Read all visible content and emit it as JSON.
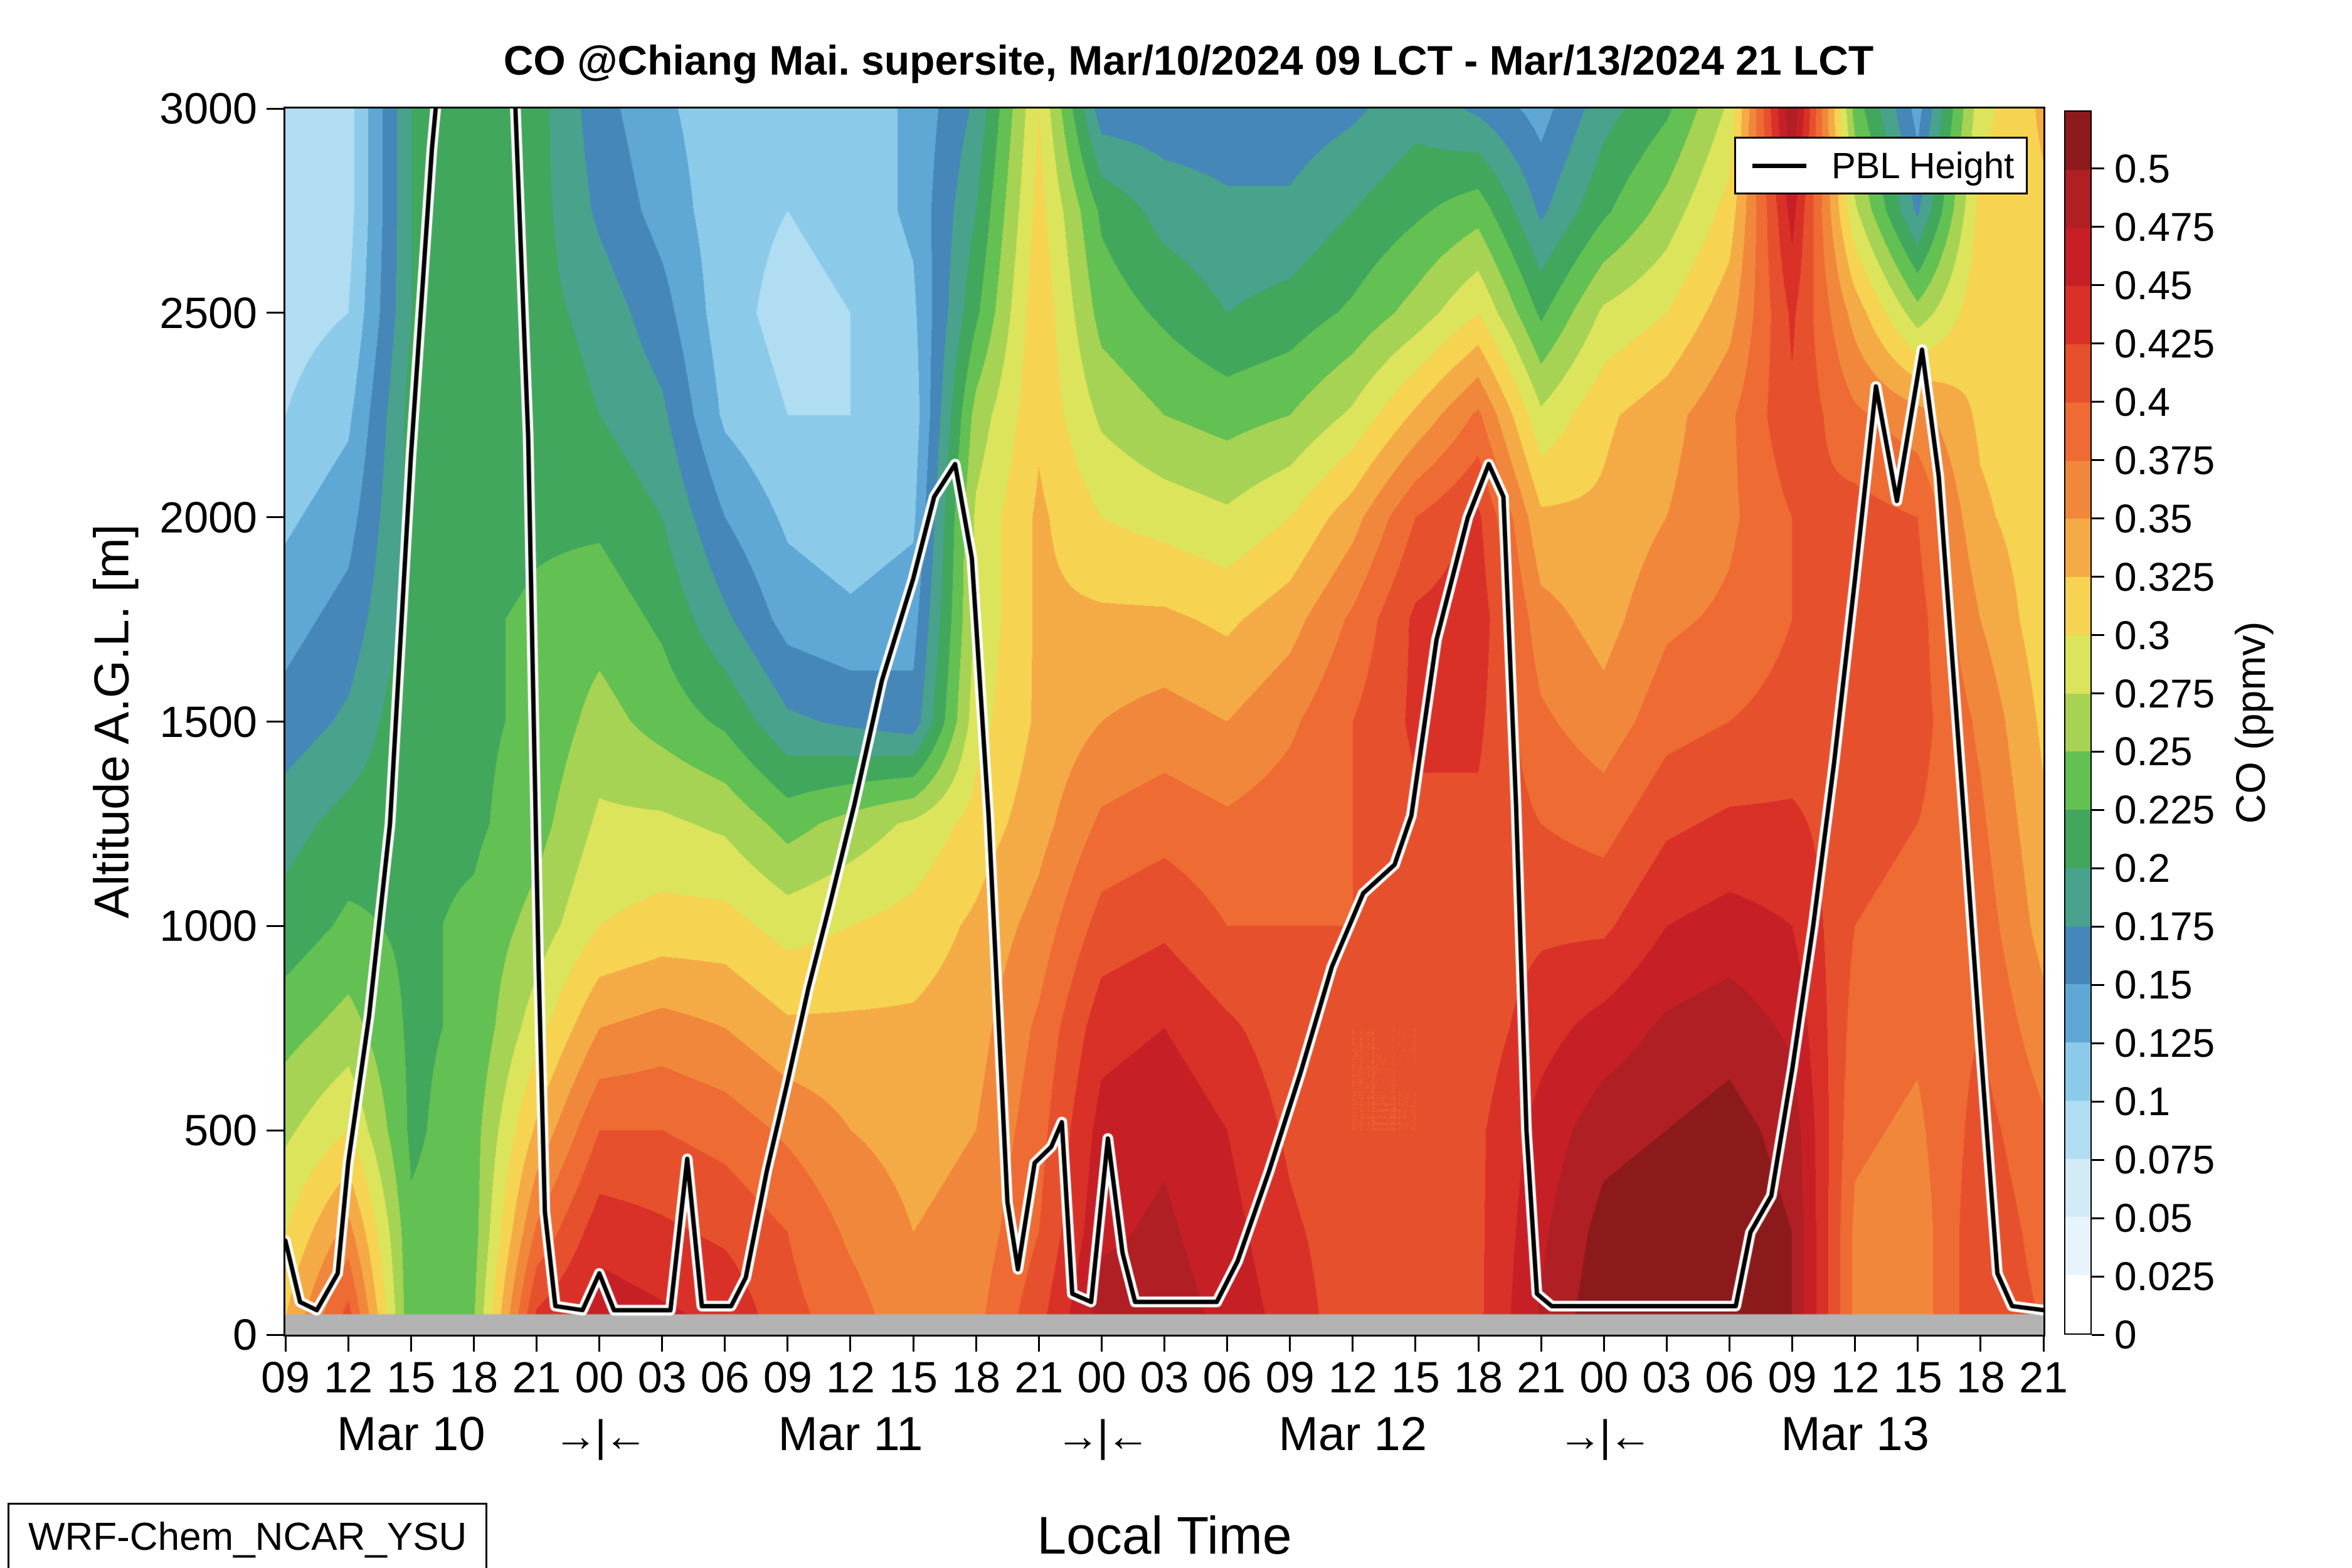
{
  "figure": {
    "title": "CO @Chiang Mai. supersite, Mar/10/2024 09 LCT - Mar/13/2024 21 LCT",
    "xlabel": "Local Time",
    "ylabel": "Altitude A.G.L. [m]",
    "model_label": "WRF-Chem_NCAR_YSU",
    "legend": {
      "label": "PBL Height",
      "line_color": "#000000"
    },
    "colorbar": {
      "label": "CO (ppmv)",
      "tick_labels": [
        "0.5",
        "0.475",
        "0.45",
        "0.425",
        "0.4",
        "0.375",
        "0.35",
        "0.325",
        "0.3",
        "0.275",
        "0.25",
        "0.225",
        "0.2",
        "0.175",
        "0.15",
        "0.125",
        "0.1",
        "0.075",
        "0.05",
        "0.025",
        "0"
      ]
    }
  },
  "chart_data": {
    "type": "heatmap",
    "title": "CO @Chiang Mai. supersite, Mar/10/2024 09 LCT - Mar/13/2024 21 LCT",
    "xlabel": "Local Time",
    "ylabel": "Altitude A.G.L. [m]",
    "x_range_hours": [
      0,
      84
    ],
    "x_tick_step_hours": 3,
    "x_tick_labels": [
      "09",
      "12",
      "15",
      "18",
      "21",
      "00",
      "03",
      "06",
      "09",
      "12",
      "15",
      "18",
      "21",
      "00",
      "03",
      "06",
      "09",
      "12",
      "15",
      "18",
      "21",
      "00",
      "03",
      "06",
      "09",
      "12",
      "15",
      "18",
      "21"
    ],
    "day_labels": [
      {
        "label": "Mar 10",
        "hour": 6
      },
      {
        "label": "Mar 11",
        "hour": 27
      },
      {
        "label": "Mar 12",
        "hour": 51
      },
      {
        "label": "Mar 13",
        "hour": 75
      }
    ],
    "day_separator_label": "→|←",
    "day_separator_hours": [
      15,
      39,
      63
    ],
    "y_ticks_m": [
      0,
      500,
      1000,
      1500,
      2000,
      2500,
      3000
    ],
    "y_range_m": [
      0,
      3000
    ],
    "levels": {
      "min": 0,
      "max": 0.5,
      "step": 0.025,
      "band_colors": [
        "#ffffff",
        "#e8f4fb",
        "#d3eaf7",
        "#b0ddf1",
        "#8bcbe9",
        "#5fa8d5",
        "#4587b9",
        "#48a28c",
        "#41a75c",
        "#63c053",
        "#a6d353",
        "#dce45c",
        "#f6d351",
        "#f5ab45",
        "#f1873b",
        "#ee6b33",
        "#e7502d",
        "#d93128",
        "#c62026",
        "#b01f23",
        "#8d1a1b"
      ]
    },
    "ground": {
      "top_m": 50,
      "color": "#b3b3b3"
    },
    "times_h": [
      0,
      3,
      6,
      9,
      12,
      15,
      18,
      21,
      24,
      27,
      30,
      33,
      36,
      39,
      42,
      45,
      48,
      51,
      54,
      57,
      60,
      63,
      66,
      69,
      72,
      75,
      78,
      81,
      84
    ],
    "altitudes_m": [
      0,
      250,
      500,
      750,
      1000,
      1250,
      1500,
      1750,
      2000,
      2250,
      2500,
      2750,
      3000
    ],
    "co_ppmv": [
      [
        0.33,
        0.42,
        0.23,
        0.25,
        0.44,
        0.47,
        0.46,
        0.45,
        0.41,
        0.39,
        0.36,
        0.37,
        0.42,
        0.49,
        0.49,
        0.47,
        0.44,
        0.41,
        0.4,
        0.42,
        0.48,
        0.52,
        0.52,
        0.52,
        0.5,
        0.37,
        0.36,
        0.42,
        0.4
      ],
      [
        0.3,
        0.36,
        0.23,
        0.24,
        0.38,
        0.44,
        0.43,
        0.42,
        0.4,
        0.37,
        0.35,
        0.36,
        0.4,
        0.47,
        0.48,
        0.46,
        0.43,
        0.41,
        0.4,
        0.42,
        0.47,
        0.51,
        0.52,
        0.52,
        0.5,
        0.37,
        0.36,
        0.42,
        0.39
      ],
      [
        0.27,
        0.3,
        0.22,
        0.24,
        0.33,
        0.4,
        0.4,
        0.39,
        0.37,
        0.35,
        0.34,
        0.35,
        0.39,
        0.46,
        0.47,
        0.45,
        0.42,
        0.4,
        0.4,
        0.42,
        0.46,
        0.49,
        0.5,
        0.51,
        0.49,
        0.38,
        0.37,
        0.41,
        0.38
      ],
      [
        0.24,
        0.26,
        0.22,
        0.23,
        0.29,
        0.35,
        0.36,
        0.35,
        0.33,
        0.33,
        0.33,
        0.34,
        0.38,
        0.44,
        0.45,
        0.43,
        0.41,
        0.4,
        0.4,
        0.41,
        0.44,
        0.46,
        0.48,
        0.49,
        0.47,
        0.39,
        0.38,
        0.4,
        0.36
      ],
      [
        0.21,
        0.23,
        0.22,
        0.23,
        0.26,
        0.3,
        0.31,
        0.31,
        0.29,
        0.3,
        0.31,
        0.33,
        0.36,
        0.41,
        0.42,
        0.4,
        0.4,
        0.4,
        0.41,
        0.41,
        0.42,
        0.42,
        0.45,
        0.46,
        0.45,
        0.4,
        0.39,
        0.39,
        0.34
      ],
      [
        0.19,
        0.21,
        0.22,
        0.22,
        0.24,
        0.28,
        0.28,
        0.27,
        0.24,
        0.26,
        0.28,
        0.31,
        0.34,
        0.38,
        0.39,
        0.38,
        0.39,
        0.4,
        0.42,
        0.42,
        0.4,
        0.39,
        0.42,
        0.43,
        0.43,
        0.41,
        0.4,
        0.38,
        0.33
      ],
      [
        0.16,
        0.18,
        0.22,
        0.22,
        0.23,
        0.26,
        0.24,
        0.22,
        0.18,
        0.17,
        0.16,
        0.29,
        0.33,
        0.35,
        0.36,
        0.35,
        0.37,
        0.4,
        0.43,
        0.43,
        0.38,
        0.36,
        0.39,
        0.4,
        0.41,
        0.42,
        0.41,
        0.37,
        0.32
      ],
      [
        0.14,
        0.16,
        0.21,
        0.22,
        0.23,
        0.24,
        0.22,
        0.18,
        0.14,
        0.13,
        0.14,
        0.28,
        0.33,
        0.33,
        0.33,
        0.32,
        0.34,
        0.38,
        0.43,
        0.44,
        0.36,
        0.34,
        0.37,
        0.38,
        0.4,
        0.42,
        0.41,
        0.35,
        0.31
      ],
      [
        0.12,
        0.14,
        0.21,
        0.21,
        0.22,
        0.22,
        0.2,
        0.15,
        0.12,
        0.11,
        0.12,
        0.28,
        0.33,
        0.3,
        0.29,
        0.28,
        0.3,
        0.34,
        0.4,
        0.43,
        0.33,
        0.33,
        0.35,
        0.37,
        0.4,
        0.41,
        0.4,
        0.33,
        0.31
      ],
      [
        0.1,
        0.12,
        0.21,
        0.21,
        0.22,
        0.2,
        0.18,
        0.12,
        0.1,
        0.1,
        0.11,
        0.26,
        0.32,
        0.27,
        0.25,
        0.24,
        0.25,
        0.28,
        0.33,
        0.38,
        0.28,
        0.32,
        0.34,
        0.37,
        0.42,
        0.38,
        0.36,
        0.32,
        0.31
      ],
      [
        0.09,
        0.1,
        0.2,
        0.21,
        0.21,
        0.19,
        0.16,
        0.11,
        0.09,
        0.1,
        0.12,
        0.22,
        0.32,
        0.24,
        0.22,
        0.2,
        0.21,
        0.23,
        0.26,
        0.3,
        0.22,
        0.28,
        0.3,
        0.34,
        0.43,
        0.34,
        0.26,
        0.32,
        0.31
      ],
      [
        0.08,
        0.09,
        0.2,
        0.21,
        0.21,
        0.17,
        0.14,
        0.11,
        0.1,
        0.11,
        0.13,
        0.2,
        0.31,
        0.22,
        0.19,
        0.18,
        0.18,
        0.2,
        0.22,
        0.24,
        0.17,
        0.22,
        0.26,
        0.31,
        0.46,
        0.28,
        0.17,
        0.31,
        0.32
      ],
      [
        0.08,
        0.09,
        0.2,
        0.2,
        0.21,
        0.16,
        0.13,
        0.11,
        0.1,
        0.11,
        0.13,
        0.18,
        0.3,
        0.16,
        0.16,
        0.16,
        0.16,
        0.17,
        0.19,
        0.17,
        0.14,
        0.19,
        0.22,
        0.28,
        0.5,
        0.24,
        0.14,
        0.29,
        0.33
      ]
    ],
    "pbl_height": {
      "name": "PBL Height",
      "t_hours": [
        0,
        0.7,
        1.5,
        2.5,
        3,
        4,
        5,
        6,
        7,
        7.4,
        10.9,
        11.6,
        12.1,
        12.4,
        12.9,
        14.2,
        15,
        15.7,
        18.4,
        19.2,
        19.9,
        21.3,
        22,
        23,
        24,
        25,
        26,
        27.2,
        28.5,
        30,
        31,
        32,
        32.8,
        33.6,
        34.5,
        35,
        35.8,
        36.6,
        37.1,
        37.6,
        38.5,
        39.3,
        40,
        40.6,
        44.5,
        45.5,
        47,
        48.5,
        50,
        51.5,
        53,
        53.8,
        55,
        56.5,
        57.5,
        58.2,
        58.8,
        59.3,
        59.8,
        60.5,
        69.3,
        70,
        71,
        72,
        73,
        74,
        75,
        76,
        77,
        78.2,
        79,
        80.2,
        81,
        81.8,
        82.5,
        84
      ],
      "height_m": [
        230,
        80,
        60,
        150,
        420,
        780,
        1250,
        2150,
        2900,
        3120,
        3120,
        2200,
        900,
        300,
        70,
        60,
        150,
        60,
        60,
        430,
        70,
        70,
        140,
        400,
        620,
        850,
        1050,
        1300,
        1600,
        1850,
        2050,
        2130,
        1900,
        1270,
        325,
        160,
        420,
        460,
        520,
        100,
        80,
        480,
        200,
        80,
        80,
        180,
        400,
        640,
        900,
        1080,
        1150,
        1270,
        1700,
        2000,
        2130,
        2050,
        1300,
        500,
        100,
        70,
        70,
        250,
        340,
        650,
        1000,
        1400,
        1850,
        2320,
        2040,
        2410,
        2100,
        1270,
        700,
        150,
        70,
        60
      ]
    }
  }
}
